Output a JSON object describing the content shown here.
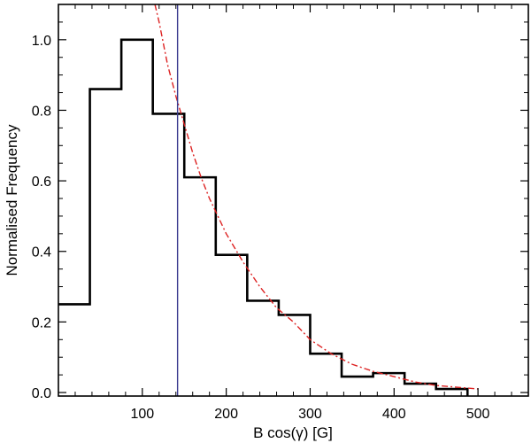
{
  "chart_data": {
    "type": "histogram",
    "title": "",
    "xlabel": "B cos(γ) [G]",
    "ylabel": "Normalised Frequency",
    "xlim": [
      0,
      560
    ],
    "ylim": [
      -0.01,
      1.1
    ],
    "x_ticks": [
      100,
      200,
      300,
      400,
      500
    ],
    "x_tick_labels": [
      "100",
      "200",
      "300",
      "400",
      "500"
    ],
    "y_ticks": [
      0.0,
      0.2,
      0.4,
      0.6,
      0.8,
      1.0
    ],
    "y_tick_labels": [
      "0.0",
      "0.2",
      "0.4",
      "0.6",
      "0.8",
      "1.0"
    ],
    "bin_edges": [
      0,
      37.5,
      75,
      112.5,
      150,
      187.5,
      225,
      262.5,
      300,
      337.5,
      375,
      412.5,
      450,
      487.5
    ],
    "values": [
      0.25,
      0.86,
      1.0,
      0.79,
      0.61,
      0.39,
      0.26,
      0.22,
      0.11,
      0.045,
      0.055,
      0.025,
      0.01
    ],
    "vertical_line": {
      "x": 142,
      "color": "#3b3b8f"
    },
    "fit_curve": {
      "style": "dash-dot",
      "color": "#dd2222",
      "x": [
        115,
        120,
        130,
        140,
        150,
        160,
        170,
        180,
        190,
        200,
        220,
        240,
        260,
        280,
        300,
        325,
        350,
        375,
        400,
        425,
        450,
        475,
        500
      ],
      "y": [
        1.1,
        1.05,
        0.93,
        0.84,
        0.76,
        0.68,
        0.61,
        0.55,
        0.5,
        0.45,
        0.37,
        0.3,
        0.24,
        0.2,
        0.15,
        0.11,
        0.08,
        0.06,
        0.045,
        0.03,
        0.02,
        0.015,
        0.01
      ]
    },
    "grid": false,
    "legend": "none",
    "colors": {
      "histogram": "#000000",
      "axes": "#000000"
    }
  }
}
